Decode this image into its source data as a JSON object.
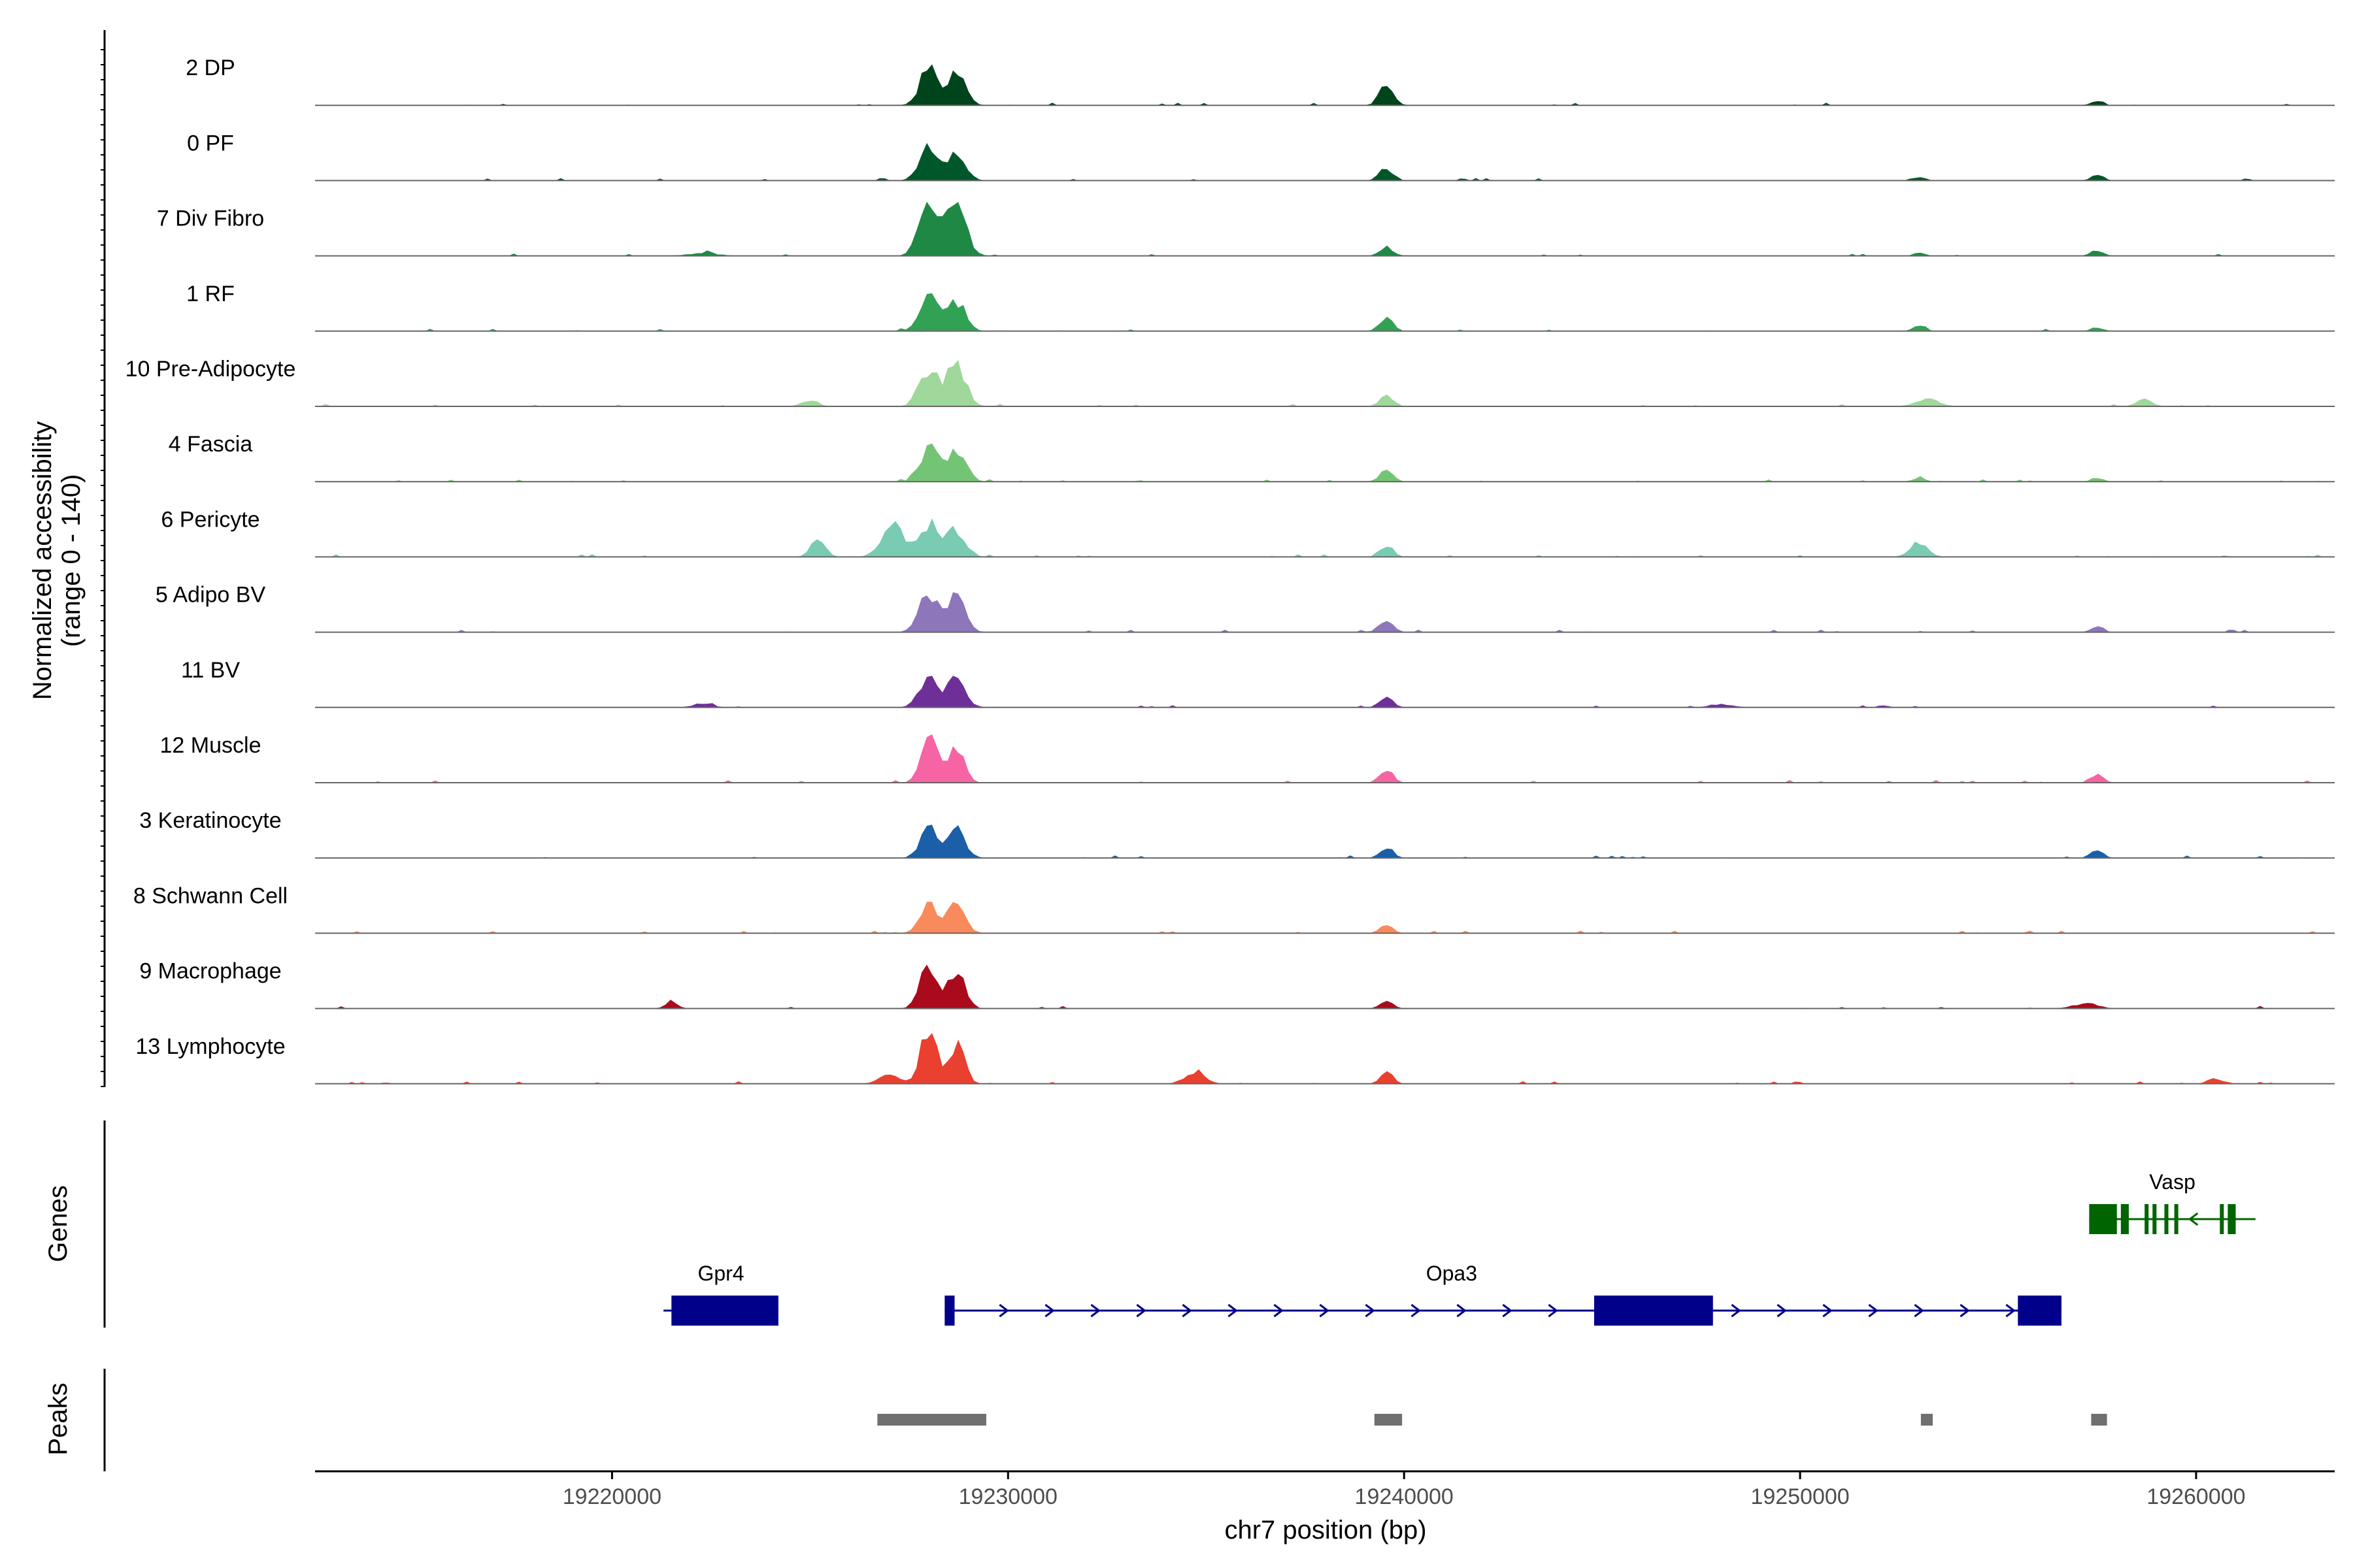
{
  "chart_data": {
    "type": "area",
    "title": "",
    "chromosome": "chr7",
    "xlabel": "chr7 position (bp)",
    "ylabel": "Normalized accessibility\n(range 0 - 140)",
    "ylabel_lines": [
      "Normalized accessibility",
      "(range 0 - 140)"
    ],
    "xlim": [
      19212500,
      19263500
    ],
    "ylim": [
      0,
      140
    ],
    "x_ticks": [
      19220000,
      19230000,
      19240000,
      19250000,
      19260000
    ],
    "x_tick_labels": [
      "19220000",
      "19230000",
      "19240000",
      "19250000",
      "19260000"
    ],
    "peak_centers": [
      19228000,
      19228700,
      19239550,
      19253000,
      19257500
    ],
    "tracks": [
      {
        "name": "2 DP",
        "color": "#00441b",
        "peaks": [
          [
            19228000,
            60,
            220
          ],
          [
            19228700,
            50,
            220
          ],
          [
            19239550,
            30,
            180
          ],
          [
            19257500,
            6,
            150
          ]
        ]
      },
      {
        "name": "0 PF",
        "color": "#00582a",
        "peaks": [
          [
            19228000,
            55,
            230
          ],
          [
            19228700,
            48,
            220
          ],
          [
            19239550,
            20,
            170
          ],
          [
            19253000,
            6,
            150
          ],
          [
            19257500,
            10,
            150
          ]
        ]
      },
      {
        "name": "7 Div Fibro",
        "color": "#1f8845",
        "peaks": [
          [
            19228000,
            82,
            240
          ],
          [
            19228700,
            80,
            240
          ],
          [
            19239550,
            14,
            170
          ],
          [
            19253000,
            5,
            140
          ],
          [
            19257500,
            9,
            150
          ],
          [
            19222300,
            4,
            400
          ]
        ]
      },
      {
        "name": "1 RF",
        "color": "#31a254",
        "peaks": [
          [
            19228000,
            50,
            230
          ],
          [
            19228700,
            46,
            220
          ],
          [
            19239550,
            20,
            170
          ],
          [
            19253000,
            8,
            150
          ],
          [
            19257500,
            6,
            150
          ]
        ]
      },
      {
        "name": "10 Pre-Adipocyte",
        "color": "#9fd89a",
        "peaks": [
          [
            19228000,
            56,
            240
          ],
          [
            19228700,
            62,
            240
          ],
          [
            19239550,
            18,
            170
          ],
          [
            19225000,
            10,
            200
          ],
          [
            19253200,
            12,
            300
          ],
          [
            19258700,
            10,
            200
          ]
        ]
      },
      {
        "name": "4 Fascia",
        "color": "#74c476",
        "peaks": [
          [
            19228000,
            52,
            230
          ],
          [
            19228700,
            50,
            230
          ],
          [
            19239550,
            18,
            170
          ],
          [
            19253000,
            6,
            150
          ],
          [
            19257500,
            6,
            150
          ]
        ]
      },
      {
        "name": "6 Pericyte",
        "color": "#7acbb3",
        "peaks": [
          [
            19228000,
            50,
            240
          ],
          [
            19228700,
            42,
            230
          ],
          [
            19227100,
            48,
            280
          ],
          [
            19225200,
            28,
            180
          ],
          [
            19239550,
            18,
            170
          ],
          [
            19253000,
            22,
            220
          ]
        ]
      },
      {
        "name": "5 Adipo BV",
        "color": "#8e76bb",
        "peaks": [
          [
            19228000,
            60,
            240
          ],
          [
            19228700,
            52,
            230
          ],
          [
            19239550,
            22,
            170
          ],
          [
            19257500,
            10,
            150
          ]
        ]
      },
      {
        "name": "11 BV",
        "color": "#6f2f98",
        "peaks": [
          [
            19228000,
            45,
            240
          ],
          [
            19228700,
            42,
            230
          ],
          [
            19239550,
            16,
            170
          ],
          [
            19222300,
            6,
            250
          ],
          [
            19248000,
            5,
            300
          ]
        ]
      },
      {
        "name": "12 Muscle",
        "color": "#f764a4",
        "peaks": [
          [
            19228000,
            72,
            200
          ],
          [
            19228700,
            58,
            200
          ],
          [
            19239550,
            22,
            160
          ],
          [
            19257500,
            12,
            150
          ]
        ]
      },
      {
        "name": "3 Keratinocyte",
        "color": "#1a5fa8",
        "peaks": [
          [
            19228000,
            44,
            220
          ],
          [
            19228700,
            42,
            220
          ],
          [
            19239550,
            18,
            160
          ],
          [
            19257500,
            14,
            150
          ]
        ]
      },
      {
        "name": "8 Schwann Cell",
        "color": "#f98a5c",
        "peaks": [
          [
            19228000,
            46,
            220
          ],
          [
            19228700,
            44,
            220
          ],
          [
            19239550,
            16,
            160
          ]
        ]
      },
      {
        "name": "9 Macrophage",
        "color": "#aa0b1c",
        "peaks": [
          [
            19228000,
            64,
            220
          ],
          [
            19228700,
            56,
            210
          ],
          [
            19239550,
            14,
            150
          ],
          [
            19221500,
            12,
            150
          ],
          [
            19257200,
            8,
            300
          ]
        ]
      },
      {
        "name": "13 Lymphocyte",
        "color": "#e9402f",
        "peaks": [
          [
            19228000,
            88,
            200
          ],
          [
            19228700,
            62,
            200
          ],
          [
            19227000,
            16,
            250
          ],
          [
            19239550,
            20,
            150
          ],
          [
            19234700,
            18,
            250
          ],
          [
            19260500,
            8,
            200
          ]
        ]
      }
    ],
    "genes": [
      {
        "name": "Gpr4",
        "strand": "+",
        "start": 19221300,
        "end": 19224200,
        "color": "#00008b",
        "exons": [
          [
            19221500,
            19224200
          ]
        ]
      },
      {
        "name": "Opa3",
        "strand": "+",
        "start": 19228400,
        "end": 19256600,
        "color": "#00008b",
        "exons": [
          [
            19228400,
            19228650
          ],
          [
            19244800,
            19247800
          ],
          [
            19255500,
            19256600
          ]
        ]
      },
      {
        "name": "Vasp",
        "strand": "-",
        "start": 19257300,
        "end": 19261500,
        "color": "#006400",
        "exons": [
          [
            19257300,
            19258000
          ],
          [
            19258100,
            19258300
          ],
          [
            19258700,
            19258800
          ],
          [
            19258900,
            19259000
          ],
          [
            19259200,
            19259300
          ],
          [
            19259450,
            19259550
          ],
          [
            19260600,
            19260700
          ],
          [
            19260800,
            19261000
          ]
        ]
      }
    ],
    "peaks": [
      {
        "start": 19226700,
        "end": 19229450
      },
      {
        "start": 19239250,
        "end": 19239950
      },
      {
        "start": 19253050,
        "end": 19253350
      },
      {
        "start": 19257350,
        "end": 19257750
      }
    ],
    "panel_titles": {
      "genes": "Genes",
      "peaks": "Peaks"
    },
    "colors": {
      "axis": "#000000",
      "baseline": "#666666",
      "peak_bar": "#707070"
    }
  }
}
